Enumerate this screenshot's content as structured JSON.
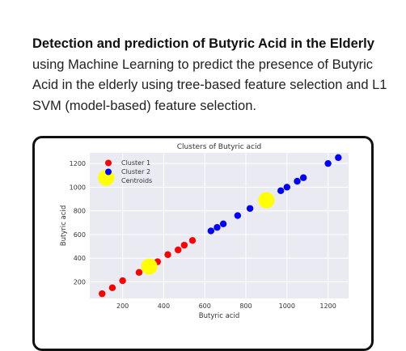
{
  "description": {
    "title": "Detection and prediction of Butyric Acid in the Elderly",
    "body": " using Machine Learning to predict the presence of Butyric Acid in the elderly using tree-based feature selection and L1 SVM (model-based) feature selection."
  },
  "chart_data": {
    "type": "scatter",
    "title": "Clusters of Butyric acid",
    "xlabel": "Butyric acid",
    "ylabel": "Butyric acid",
    "xlim": [
      40,
      1300
    ],
    "ylim": [
      60,
      1290
    ],
    "xticks": [
      200,
      400,
      600,
      800,
      1000,
      1200
    ],
    "yticks": [
      200,
      400,
      600,
      800,
      1000,
      1200
    ],
    "grid": true,
    "legend_position": "top-left",
    "series": [
      {
        "name": "Cluster 1",
        "color": "#ff0000",
        "points": [
          [
            100,
            100
          ],
          [
            150,
            150
          ],
          [
            200,
            210
          ],
          [
            280,
            280
          ],
          [
            370,
            370
          ],
          [
            420,
            430
          ],
          [
            470,
            470
          ],
          [
            500,
            510
          ],
          [
            540,
            550
          ]
        ]
      },
      {
        "name": "Cluster 2",
        "color": "#0000ff",
        "points": [
          [
            630,
            630
          ],
          [
            660,
            660
          ],
          [
            690,
            690
          ],
          [
            760,
            760
          ],
          [
            820,
            820
          ],
          [
            970,
            970
          ],
          [
            1000,
            1000
          ],
          [
            1050,
            1050
          ],
          [
            1080,
            1080
          ],
          [
            1200,
            1200
          ],
          [
            1250,
            1250
          ]
        ]
      },
      {
        "name": "Centroids",
        "color": "#ffff00",
        "points": [
          [
            120,
            1080
          ],
          [
            330,
            330
          ],
          [
            900,
            890
          ]
        ]
      }
    ]
  }
}
